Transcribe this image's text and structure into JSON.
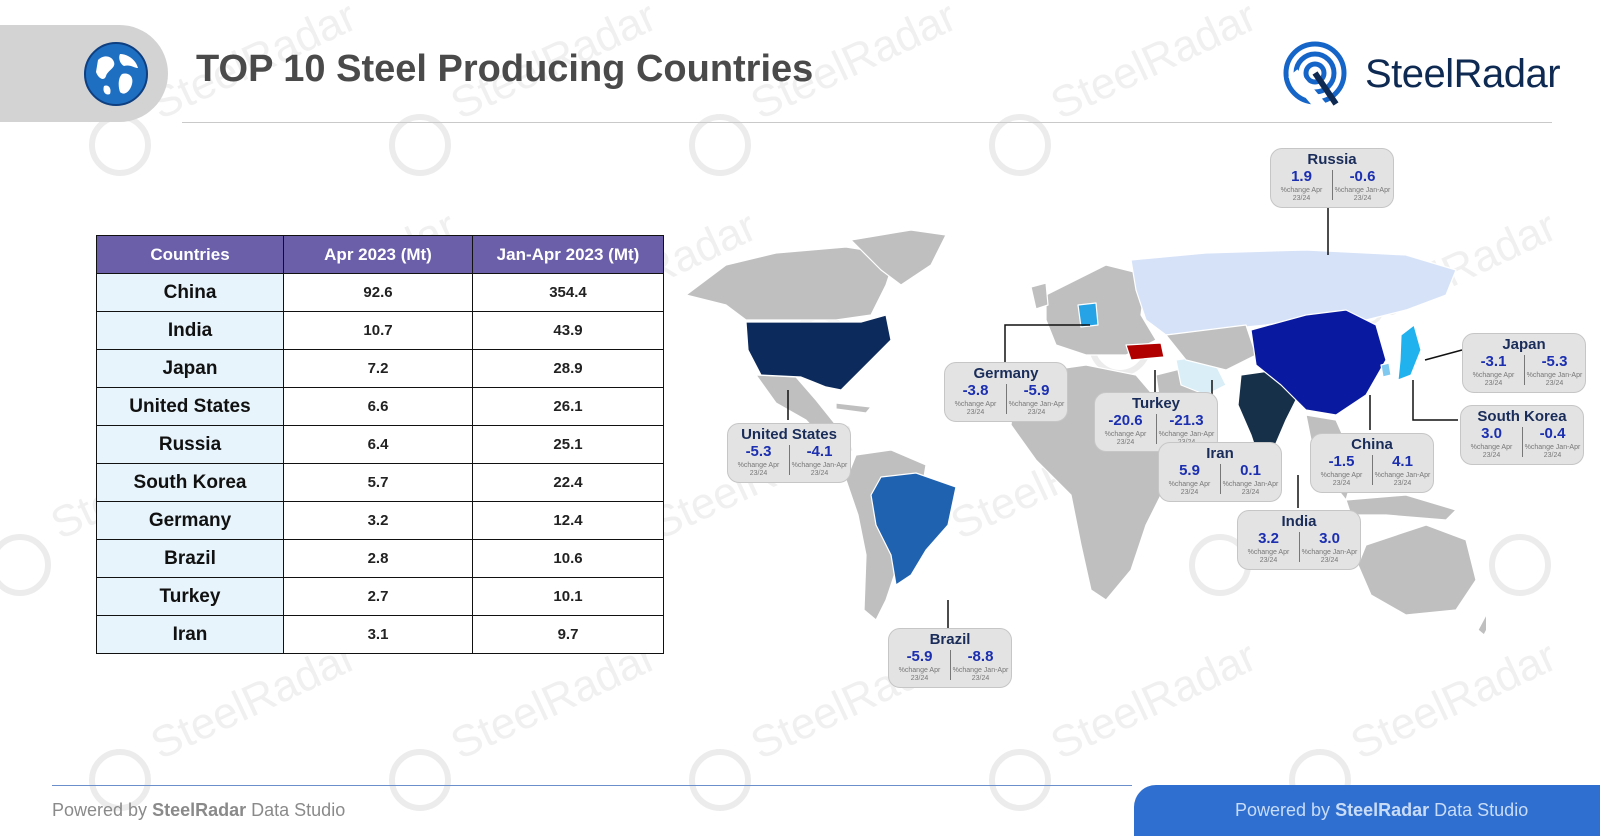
{
  "header": {
    "title": "TOP 10 Steel Producing Countries",
    "brand": "SteelRadar"
  },
  "table": {
    "headers": [
      "Countries",
      "Apr 2023 (Mt)",
      "Jan-Apr 2023 (Mt)"
    ],
    "rows": [
      {
        "country": "China",
        "apr": "92.6",
        "janapr": "354.4"
      },
      {
        "country": "India",
        "apr": "10.7",
        "janapr": "43.9"
      },
      {
        "country": "Japan",
        "apr": "7.2",
        "janapr": "28.9"
      },
      {
        "country": "United States",
        "apr": "6.6",
        "janapr": "26.1"
      },
      {
        "country": "Russia",
        "apr": "6.4",
        "janapr": "25.1"
      },
      {
        "country": "South Korea",
        "apr": "5.7",
        "janapr": "22.4"
      },
      {
        "country": "Germany",
        "apr": "3.2",
        "janapr": "12.4"
      },
      {
        "country": "Brazil",
        "apr": "2.8",
        "janapr": "10.6"
      },
      {
        "country": "Turkey",
        "apr": "2.7",
        "janapr": "10.1"
      },
      {
        "country": "Iran",
        "apr": "3.1",
        "janapr": "9.7"
      }
    ]
  },
  "callouts": {
    "label_apr": "%change Apr 23/24",
    "label_janapr": "%change Jan-Apr 23/24",
    "items": [
      {
        "country": "Russia",
        "apr": "1.9",
        "janapr": "-0.6"
      },
      {
        "country": "Germany",
        "apr": "-3.8",
        "janapr": "-5.9"
      },
      {
        "country": "Turkey",
        "apr": "-20.6",
        "janapr": "-21.3"
      },
      {
        "country": "United States",
        "apr": "-5.3",
        "janapr": "-4.1"
      },
      {
        "country": "Iran",
        "apr": "5.9",
        "janapr": "0.1"
      },
      {
        "country": "China",
        "apr": "-1.5",
        "janapr": "4.1"
      },
      {
        "country": "Japan",
        "apr": "-3.1",
        "janapr": "-5.3"
      },
      {
        "country": "South Korea",
        "apr": "3.0",
        "janapr": "-0.4"
      },
      {
        "country": "India",
        "apr": "3.2",
        "janapr": "3.0"
      },
      {
        "country": "Brazil",
        "apr": "-5.9",
        "janapr": "-8.8"
      }
    ]
  },
  "map_colors": {
    "land": "#bfbfbf",
    "china": "#0a1aa0",
    "united_states": "#0c2a5c",
    "india": "#16304a",
    "brazil": "#1f62b0",
    "russia": "#d6e2f8",
    "turkey": "#b00000",
    "germany": "#25a3e6",
    "iran": "#d9eef7",
    "japan": "#1fb2ef",
    "south_korea": "#7fc8ef"
  },
  "footer": {
    "prefix": "Powered by",
    "brand": "SteelRadar",
    "suffix": "Data Studio"
  }
}
